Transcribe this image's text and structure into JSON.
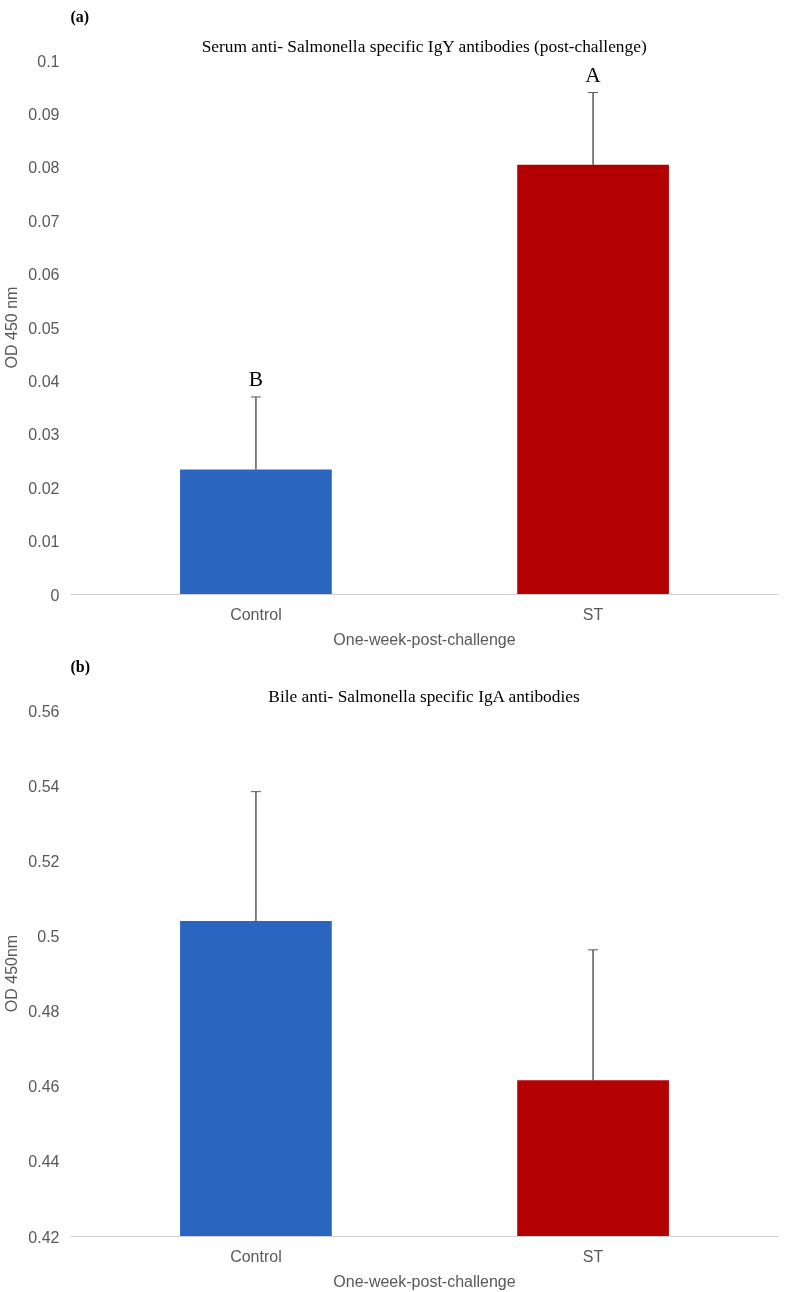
{
  "chart_data": [
    {
      "type": "bar",
      "title": "Serum anti- Salmonella specific IgY antibodies (post-challenge)",
      "xlabel": "One-week-post-challenge",
      "ylabel": "OD 450 nm",
      "categories": [
        "Control",
        "ST"
      ],
      "values": [
        0.0234,
        0.0805
      ],
      "colors": [
        "#2a66bf",
        "#b30000"
      ],
      "errors": [
        [
          0.0234,
          0.037
        ],
        [
          0.0805,
          0.094
        ]
      ],
      "ylim": [
        0,
        0.1
      ],
      "yticks": [
        0,
        0.01,
        0.02,
        0.03,
        0.04,
        0.05,
        0.06,
        0.07,
        0.08,
        0.09,
        0.1
      ],
      "grid": false,
      "annotations": [
        "(a)",
        {
          "text": "B",
          "x": "Control",
          "y": 0.037
        },
        {
          "text": "A",
          "x": "ST",
          "y": 0.094
        }
      ]
    },
    {
      "type": "bar",
      "title": "Bile anti- Salmonella specific IgA antibodies",
      "xlabel": "One-week-post-challenge",
      "ylabel": "OD 450nm",
      "categories": [
        "Control",
        "ST"
      ],
      "values": [
        0.504,
        0.4616
      ],
      "colors": [
        "#2a66bf",
        "#b30000"
      ],
      "errors": [
        [
          0.504,
          0.5384
        ],
        [
          0.4616,
          0.4963
        ]
      ],
      "ylim": [
        0.42,
        0.56
      ],
      "yticks": [
        0.42,
        0.44,
        0.46,
        0.48,
        0.5,
        0.52,
        0.54,
        0.56
      ],
      "grid": false,
      "annotations": [
        "(b)"
      ]
    }
  ]
}
